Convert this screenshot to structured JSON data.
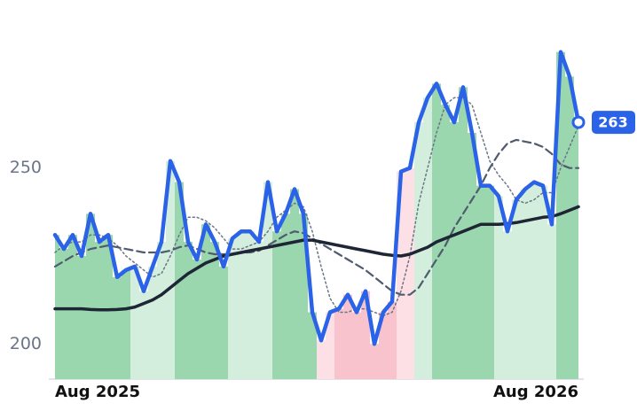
{
  "chart_data": {
    "type": "line",
    "categories": [
      "Aug 2025",
      null,
      null,
      null,
      null,
      null,
      null,
      null,
      null,
      null,
      null,
      null,
      null,
      null,
      null,
      null,
      null,
      null,
      null,
      null,
      null,
      null,
      null,
      null,
      null,
      null,
      null,
      null,
      null,
      null,
      null,
      null,
      null,
      null,
      null,
      null,
      null,
      null,
      null,
      null,
      null,
      null,
      null,
      null,
      null,
      null,
      null,
      null,
      null,
      null,
      null,
      null,
      null,
      null,
      null,
      null,
      null,
      null,
      null,
      "Aug 2026"
    ],
    "series": [
      {
        "color": "#2b63e8",
        "style": "solid",
        "values": [
          231,
          227,
          231,
          225,
          237,
          229,
          231,
          219,
          221,
          222,
          215,
          222,
          229,
          252,
          246,
          229,
          224,
          234,
          229,
          222,
          230,
          232,
          232,
          229,
          246,
          232,
          237,
          244,
          237,
          209,
          201,
          209,
          210,
          214,
          209,
          215,
          200,
          209,
          212,
          249,
          250,
          263,
          270,
          274,
          268,
          263,
          273,
          260,
          245,
          245,
          242,
          232,
          241,
          244,
          246,
          245,
          234,
          283,
          276,
          263
        ]
      },
      {
        "color": "#1e2535",
        "style": "solid",
        "values": [
          210,
          210,
          210,
          210,
          209.8,
          209.7,
          209.7,
          209.8,
          210,
          210.5,
          211.5,
          212.5,
          214,
          216,
          218,
          220,
          221.5,
          223,
          224,
          225,
          225.5,
          226,
          226.5,
          227,
          227.5,
          228,
          228.5,
          229,
          229.5,
          229.5,
          229,
          228.5,
          228,
          227.5,
          227,
          226.5,
          226,
          225.5,
          225.2,
          225,
          225.5,
          226.5,
          227.5,
          229,
          230,
          231,
          232,
          233,
          234,
          234,
          234,
          234.2,
          234.5,
          235,
          235.5,
          236,
          236.2,
          237,
          238,
          239
        ]
      },
      {
        "color": "#4f5b6e",
        "style": "dashed",
        "values": [
          222,
          223.5,
          225,
          226,
          227,
          227.5,
          228,
          227.5,
          227,
          226.5,
          226,
          226,
          226,
          226.5,
          227.5,
          228,
          227,
          226,
          225.5,
          225.5,
          225.5,
          226,
          226,
          226.5,
          228,
          229.5,
          231,
          232,
          231.5,
          230,
          228.5,
          227,
          225.5,
          224,
          222.5,
          221,
          219,
          217,
          215,
          214,
          214,
          216,
          220,
          224,
          228,
          233,
          237,
          241,
          245,
          250,
          254,
          257,
          258,
          257.5,
          257,
          256,
          254,
          251,
          250,
          250
        ]
      },
      {
        "color": "#6b7587",
        "style": "dotted",
        "values": [
          226,
          228,
          229,
          229,
          231,
          231,
          230,
          228,
          225,
          223,
          221,
          219,
          220,
          225,
          231,
          236,
          236,
          235,
          233,
          230,
          227,
          227,
          228,
          229,
          232,
          236,
          238,
          240,
          239,
          232,
          222,
          213,
          209,
          209,
          210,
          210,
          209,
          208,
          209,
          215,
          225,
          240,
          250,
          260,
          268,
          270,
          270,
          268,
          260,
          252,
          248,
          245,
          241,
          240,
          241,
          243,
          243,
          250,
          256,
          262
        ]
      }
    ],
    "zones": [
      {
        "from": 0,
        "to": 8,
        "color": "#9ad6ae"
      },
      {
        "from": 9,
        "to": 13,
        "color": "#d3eedc"
      },
      {
        "from": 14,
        "to": 19,
        "color": "#9ad6ae"
      },
      {
        "from": 20,
        "to": 24,
        "color": "#d3eedc"
      },
      {
        "from": 25,
        "to": 29,
        "color": "#9ad6ae"
      },
      {
        "from": 30,
        "to": 31,
        "color": "#fde0e6"
      },
      {
        "from": 32,
        "to": 38,
        "color": "#f8c3cd"
      },
      {
        "from": 39,
        "to": 40,
        "color": "#fde0e6"
      },
      {
        "from": 41,
        "to": 42,
        "color": "#d3eedc"
      },
      {
        "from": 43,
        "to": 49,
        "color": "#9ad6ae"
      },
      {
        "from": 50,
        "to": 56,
        "color": "#d3eedc"
      },
      {
        "from": 57,
        "to": 59,
        "color": "#9ad6ae"
      }
    ],
    "ylim": [
      190,
      295
    ],
    "yticks": [
      200,
      250
    ],
    "grid": false
  }
}
